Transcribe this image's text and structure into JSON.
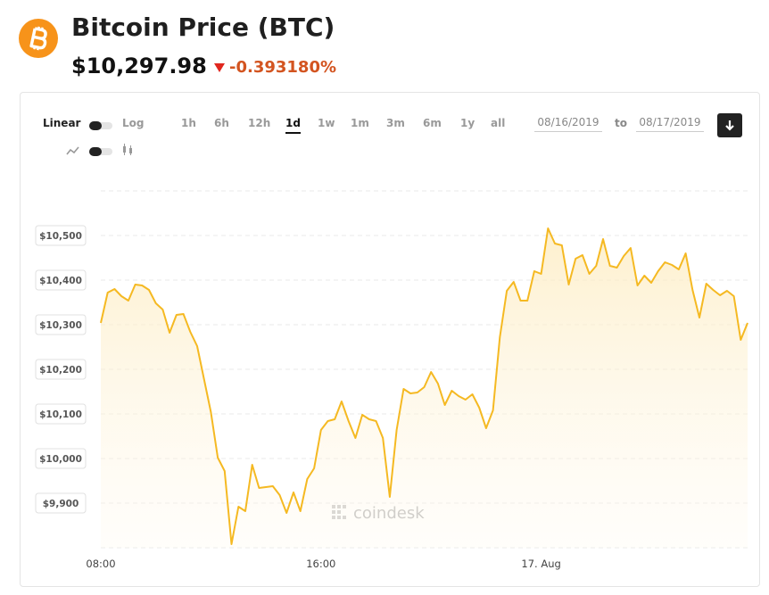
{
  "header": {
    "title": "Bitcoin Price (BTC)",
    "price": "$10,297.98",
    "change": "-0.393180%"
  },
  "controls": {
    "scale_linear": "Linear",
    "scale_log": "Log",
    "ranges": [
      "1h",
      "6h",
      "12h",
      "1d",
      "1w",
      "1m",
      "3m",
      "6m",
      "1y",
      "all"
    ],
    "active_range": 3,
    "date_from": "08/16/2019",
    "date_sep": "to",
    "date_to": "08/17/2019"
  },
  "chart_data": {
    "type": "line",
    "watermark": "coindesk",
    "color": "#f5b922",
    "x": [
      8,
      8.25,
      8.5,
      8.75,
      9,
      9.25,
      9.5,
      9.75,
      10,
      10.25,
      10.5,
      10.75,
      11,
      11.25,
      11.5,
      11.75,
      12,
      12.25,
      12.5,
      12.75,
      13,
      13.25,
      13.5,
      13.75,
      14,
      14.25,
      14.5,
      14.75,
      15,
      15.25,
      15.5,
      15.75,
      16,
      16.25,
      16.5,
      16.75,
      17,
      17.25,
      17.5,
      17.75,
      18,
      18.25,
      18.5,
      18.75,
      19,
      19.25,
      19.5,
      19.75,
      20,
      20.25,
      20.5,
      20.75,
      21,
      21.25,
      21.5,
      21.75,
      22,
      22.25,
      22.5,
      22.75,
      23,
      23.25,
      23.5,
      23.75,
      24,
      24.25,
      24.5,
      24.75,
      25,
      25.25,
      25.5,
      25.75,
      26,
      26.25,
      26.5,
      26.75,
      27,
      27.25,
      27.5,
      27.75,
      28,
      28.25,
      28.5,
      28.75,
      29,
      29.25,
      29.5,
      29.75,
      30,
      30.25,
      30.5,
      30.75,
      31,
      31.25,
      31.5
    ],
    "values": [
      10304,
      10372,
      10380,
      10364,
      10354,
      10390,
      10388,
      10378,
      10348,
      10334,
      10282,
      10322,
      10324,
      10284,
      10252,
      10178,
      10104,
      10002,
      9972,
      9808,
      9892,
      9882,
      9986,
      9934,
      9936,
      9938,
      9918,
      9878,
      9924,
      9882,
      9954,
      9978,
      10064,
      10084,
      10088,
      10128,
      10084,
      10046,
      10098,
      10088,
      10084,
      10046,
      9914,
      10064,
      10156,
      10146,
      10148,
      10160,
      10194,
      10168,
      10120,
      10152,
      10140,
      10132,
      10144,
      10114,
      10068,
      10108,
      10272,
      10376,
      10396,
      10354,
      10354,
      10420,
      10414,
      10516,
      10482,
      10478,
      10390,
      10448,
      10456,
      10414,
      10432,
      10492,
      10432,
      10428,
      10454,
      10472,
      10388,
      10410,
      10394,
      10420,
      10440,
      10434,
      10424,
      10460,
      10378,
      10316,
      10392,
      10378,
      10366,
      10376,
      10364,
      10266,
      10304
    ],
    "xlim": [
      8,
      31.5
    ],
    "xticks": [
      {
        "value": 8,
        "label": "08:00"
      },
      {
        "value": 16,
        "label": "16:00"
      },
      {
        "value": 24,
        "label": "17. Aug"
      }
    ],
    "ylim": [
      9800,
      10600
    ],
    "yticks": [
      {
        "value": 9900,
        "label": "$9,900"
      },
      {
        "value": 10000,
        "label": "$10,000"
      },
      {
        "value": 10100,
        "label": "$10,100"
      },
      {
        "value": 10200,
        "label": "$10,200"
      },
      {
        "value": 10300,
        "label": "$10,300"
      },
      {
        "value": 10400,
        "label": "$10,400"
      },
      {
        "value": 10500,
        "label": "$10,500"
      }
    ],
    "grid": true
  }
}
